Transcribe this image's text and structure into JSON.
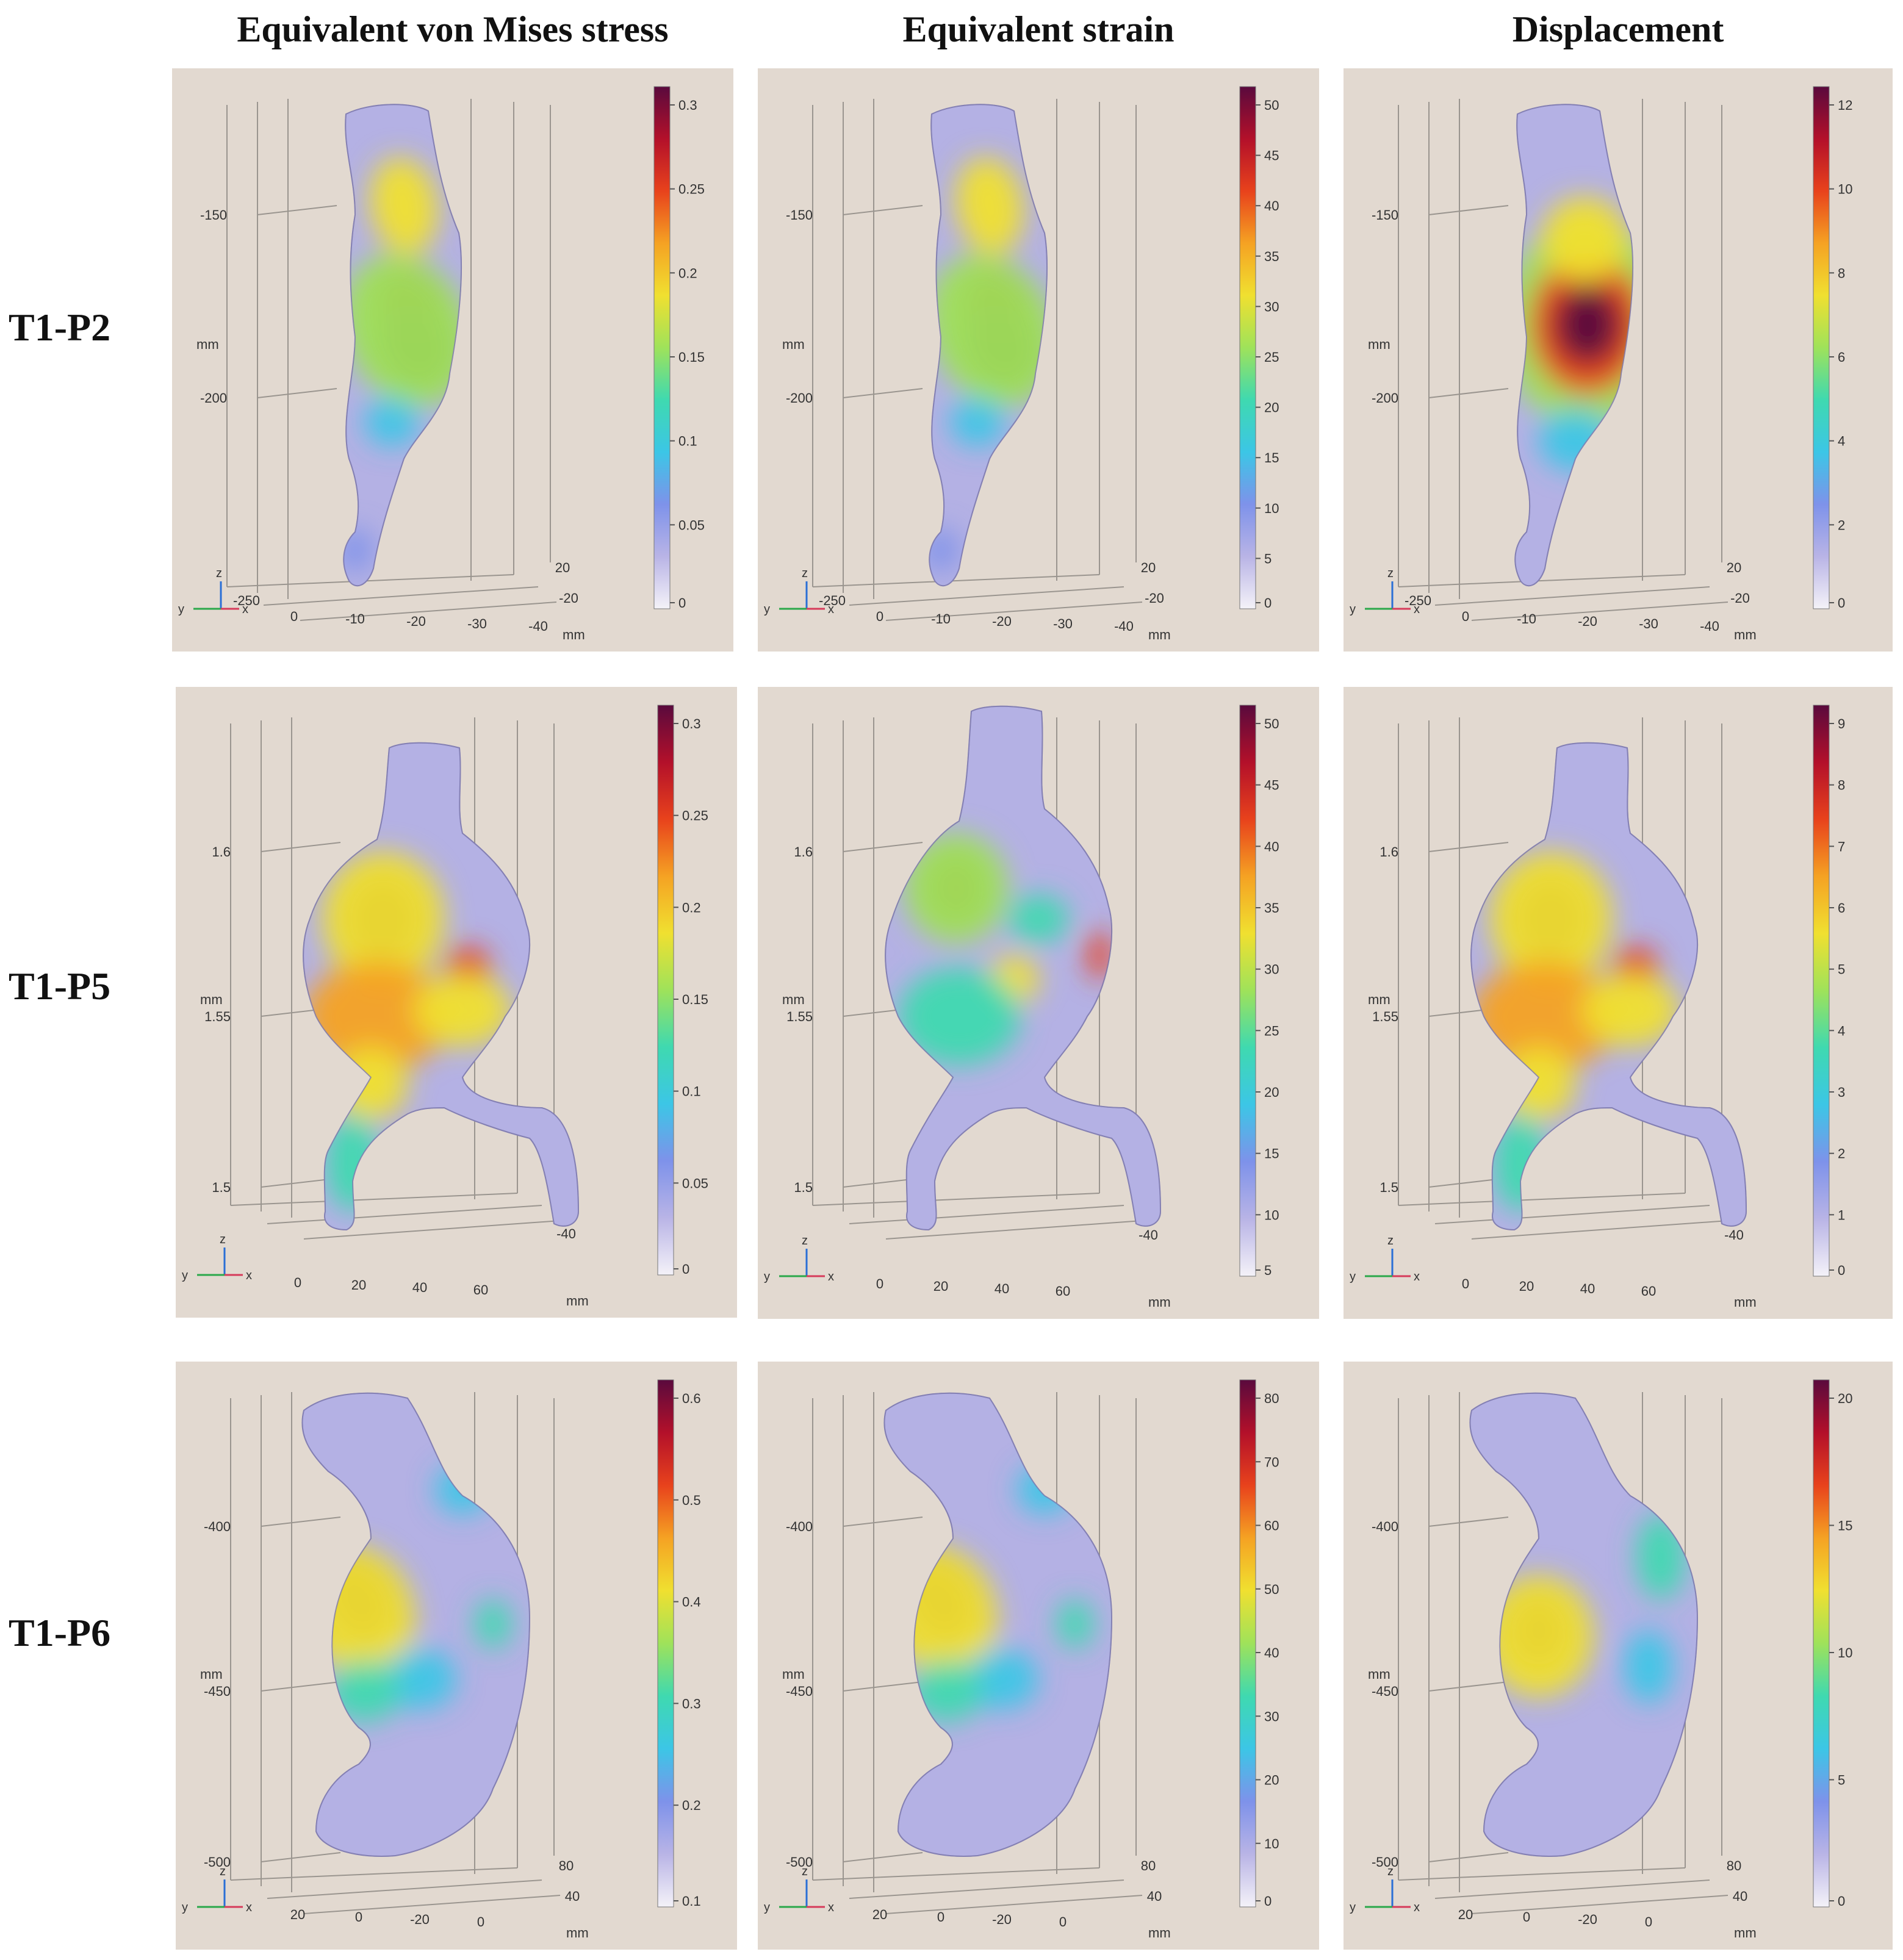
{
  "columns": [
    "Equivalent von Mises stress",
    "Equivalent strain",
    "Displacement"
  ],
  "rows": [
    "T1-P2",
    "T1-P5",
    "T1-P6"
  ],
  "colors": {
    "background": "#e2d9d0",
    "colormap": [
      "#f4f2f8",
      "#b9b4e6",
      "#7e92ea",
      "#3cc6e6",
      "#3fd9b0",
      "#9fe25a",
      "#f0e030",
      "#f5a223",
      "#e8421c",
      "#b3102a",
      "#5a0a3d"
    ]
  },
  "panels": [
    {
      "id": "r1c1",
      "row": "T1-P2",
      "column": "Equivalent von Mises stress",
      "shape": "p2",
      "colorbar": {
        "ticks": [
          "0.3",
          "0.25",
          "0.2",
          "0.15",
          "0.1",
          "0.05",
          "0"
        ]
      },
      "zticks": [
        "-150",
        "-200"
      ],
      "zunit": "mm",
      "zlow": "-250",
      "xticks": [
        "0",
        "-10",
        "-20",
        "-30",
        "-40"
      ],
      "yticks": [
        "20",
        "-20"
      ],
      "hunit": "mm",
      "triad": [
        "z",
        "y",
        "x"
      ]
    },
    {
      "id": "r1c2",
      "row": "T1-P2",
      "column": "Equivalent strain",
      "shape": "p2",
      "colorbar": {
        "ticks": [
          "50",
          "45",
          "40",
          "35",
          "30",
          "25",
          "20",
          "15",
          "10",
          "5",
          "0"
        ]
      },
      "zticks": [
        "-150",
        "-200"
      ],
      "zunit": "mm",
      "zlow": "-250",
      "xticks": [
        "0",
        "-10",
        "-20",
        "-30",
        "-40"
      ],
      "yticks": [
        "20",
        "-20"
      ],
      "hunit": "mm",
      "triad": [
        "z",
        "y",
        "x"
      ]
    },
    {
      "id": "r1c3",
      "row": "T1-P2",
      "column": "Displacement",
      "shape": "p2d",
      "colorbar": {
        "ticks": [
          "12",
          "10",
          "8",
          "6",
          "4",
          "2",
          "0"
        ]
      },
      "zticks": [
        "-150",
        "-200"
      ],
      "zunit": "mm",
      "zlow": "-250",
      "xticks": [
        "0",
        "-10",
        "-20",
        "-30",
        "-40"
      ],
      "yticks": [
        "20",
        "-20"
      ],
      "hunit": "mm",
      "triad": [
        "z",
        "y",
        "x"
      ]
    },
    {
      "id": "r2c1",
      "row": "T1-P5",
      "column": "Equivalent von Mises stress",
      "shape": "p5",
      "colorbar": {
        "ticks": [
          "0.3",
          "0.25",
          "0.2",
          "0.15",
          "0.1",
          "0.05",
          "0"
        ]
      },
      "zticks": [
        "1.6",
        "1.55",
        "1.5"
      ],
      "zunit": "mm",
      "xticks": [
        "0",
        "20",
        "40",
        "60"
      ],
      "yticks": [
        "-40"
      ],
      "hunit": "mm",
      "triad": [
        "z",
        "y",
        "x"
      ]
    },
    {
      "id": "r2c2",
      "row": "T1-P5",
      "column": "Equivalent strain",
      "shape": "p5s",
      "colorbar": {
        "ticks": [
          "50",
          "45",
          "40",
          "35",
          "30",
          "25",
          "20",
          "15",
          "10",
          "5"
        ]
      },
      "zticks": [
        "1.6",
        "1.55",
        "1.5"
      ],
      "zunit": "mm",
      "xticks": [
        "0",
        "20",
        "40",
        "60"
      ],
      "yticks": [
        "-40"
      ],
      "hunit": "mm",
      "triad": [
        "z",
        "y",
        "x"
      ]
    },
    {
      "id": "r2c3",
      "row": "T1-P5",
      "column": "Displacement",
      "shape": "p5",
      "colorbar": {
        "ticks": [
          "9",
          "8",
          "7",
          "6",
          "5",
          "4",
          "3",
          "2",
          "1",
          "0"
        ]
      },
      "zticks": [
        "1.6",
        "1.55",
        "1.5"
      ],
      "zunit": "mm",
      "xticks": [
        "0",
        "20",
        "40",
        "60"
      ],
      "yticks": [
        "-40"
      ],
      "hunit": "mm",
      "triad": [
        "z",
        "y",
        "x"
      ]
    },
    {
      "id": "r3c1",
      "row": "T1-P6",
      "column": "Equivalent von Mises stress",
      "shape": "p6",
      "colorbar": {
        "ticks": [
          "0.6",
          "0.5",
          "0.4",
          "0.3",
          "0.2",
          "0.1"
        ]
      },
      "zticks": [
        "-400",
        "-450",
        "-500"
      ],
      "zunit": "mm",
      "xticks": [
        "20",
        "0",
        "-20",
        "0"
      ],
      "yticks": [
        "80",
        "40"
      ],
      "hunit": "mm",
      "triad": [
        "z",
        "y",
        "x"
      ]
    },
    {
      "id": "r3c2",
      "row": "T1-P6",
      "column": "Equivalent strain",
      "shape": "p6",
      "colorbar": {
        "ticks": [
          "80",
          "70",
          "60",
          "50",
          "40",
          "30",
          "20",
          "10",
          "0"
        ]
      },
      "zticks": [
        "-400",
        "-450",
        "-500"
      ],
      "zunit": "mm",
      "xticks": [
        "20",
        "0",
        "-20",
        "0"
      ],
      "yticks": [
        "80",
        "40"
      ],
      "hunit": "mm",
      "triad": [
        "z",
        "y",
        "x"
      ]
    },
    {
      "id": "r3c3",
      "row": "T1-P6",
      "column": "Displacement",
      "shape": "p6d",
      "colorbar": {
        "ticks": [
          "20",
          "15",
          "10",
          "5",
          "0"
        ]
      },
      "zticks": [
        "-400",
        "-450",
        "-500"
      ],
      "zunit": "mm",
      "xticks": [
        "20",
        "0",
        "-20",
        "0"
      ],
      "yticks": [
        "80",
        "40"
      ],
      "hunit": "mm",
      "triad": [
        "z",
        "y",
        "x"
      ]
    }
  ]
}
